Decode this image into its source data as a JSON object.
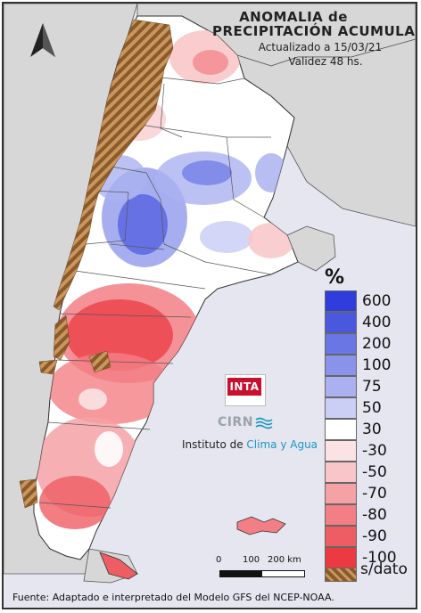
{
  "title": {
    "line1": "ANOMALIA de",
    "line2": "PRECIPITACIÓN ACUMULADA",
    "updated": "Actualizado a 15/03/21",
    "validity": "Validez 48 hs."
  },
  "legend": {
    "unit": "%",
    "classes": [
      {
        "label": "600",
        "color": "#2e3ddb"
      },
      {
        "label": "400",
        "color": "#4a58e0"
      },
      {
        "label": "200",
        "color": "#6a76e4"
      },
      {
        "label": "100",
        "color": "#8a93ea"
      },
      {
        "label": "75",
        "color": "#abb1f0"
      },
      {
        "label": "50",
        "color": "#cbcff5"
      },
      {
        "label": "30",
        "color": "#ffffff"
      },
      {
        "label": "-30",
        "color": "#fbe3e4"
      },
      {
        "label": "-50",
        "color": "#f8c6c9"
      },
      {
        "label": "-70",
        "color": "#f5a2a6"
      },
      {
        "label": "-80",
        "color": "#f27f85"
      },
      {
        "label": "-90",
        "color": "#ef5d64"
      },
      {
        "label": "-100",
        "color": "#ec3a43"
      }
    ],
    "no_data_label": "s/dato"
  },
  "scale": {
    "ticks": [
      "0",
      "100",
      "200 km"
    ]
  },
  "institution": {
    "logo_text": "INTA",
    "sub_logo": "CIRN",
    "name_prefix": "Instituto de ",
    "name_highlight": "Clima y Agua"
  },
  "source": "Fuente: Adaptado e interpretado del Modelo GFS del NCEP-NOAA.",
  "north_arrow": "north-arrow-icon",
  "colors": {
    "land": "#ffffff",
    "neighbor": "#d7d7d7",
    "sea": "#e6e6f0",
    "border": "#333333",
    "no_data": "#a0703c"
  }
}
